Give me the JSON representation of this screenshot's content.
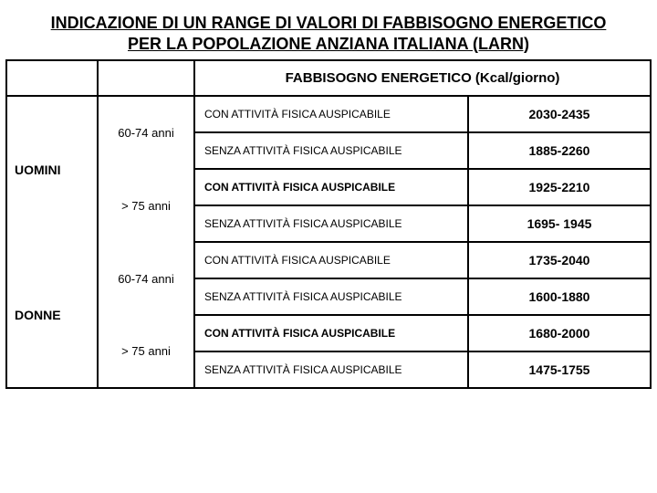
{
  "title": "INDICAZIONE DI UN RANGE DI VALORI DI FABBISOGNO ENERGETICO PER LA POPOLAZIONE ANZIANA ITALIANA (LARN)",
  "header": "FABBISOGNO ENERGETICO (Kcal/giorno)",
  "labels": {
    "with_activity": "CON ATTIVITÀ FISICA AUSPICABILE",
    "without_activity": "SENZA ATTIVITÀ FISICA AUSPICABILE",
    "age1": "60-74 anni",
    "age2": "> 75 anni",
    "group1": "UOMINI",
    "group2": "DONNE"
  },
  "values": {
    "m_6074_con": "2030-2435",
    "m_6074_senza": "1885-2260",
    "m_75_con": "1925-2210",
    "m_75_senza": "1695- 1945",
    "f_6074_con": "1735-2040",
    "f_6074_senza": "1600-1880",
    "f_75_con": "1680-2000",
    "f_75_senza": "1475-1755"
  },
  "colors": {
    "text": "#000000",
    "background": "#ffffff",
    "border": "#000000"
  },
  "fonts": {
    "title_size": 18,
    "header_size": 15,
    "group_size": 14,
    "age_size": 13,
    "activity_size": 12,
    "value_size": 14
  }
}
